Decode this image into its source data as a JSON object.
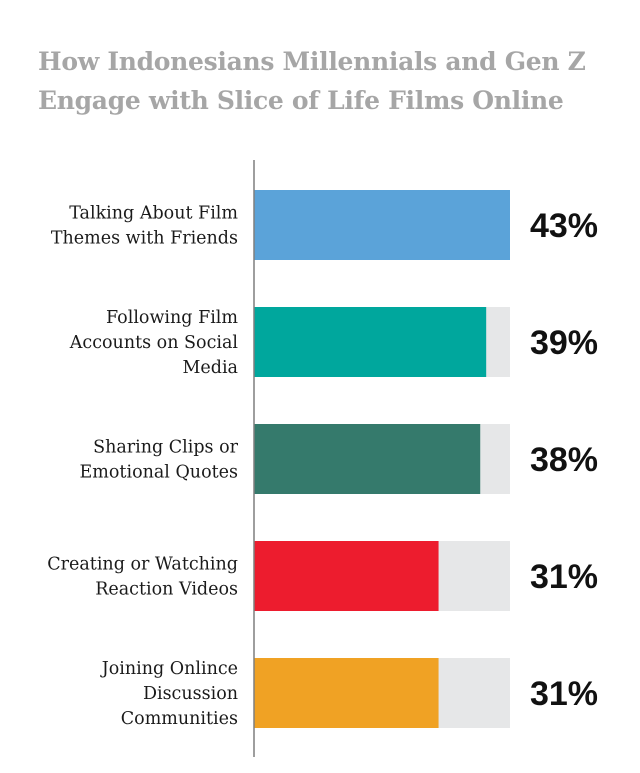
{
  "chart_data": {
    "type": "bar",
    "orientation": "horizontal",
    "title_lines": [
      "How Indonesians Millennials and Gen Z",
      "Engage with Slice of Life Films Online"
    ],
    "categories": [
      [
        "Talking About Film",
        "Themes with Friends"
      ],
      [
        "Following Film",
        "Accounts on Social",
        "Media"
      ],
      [
        "Sharing Clips or",
        "Emotional Quotes"
      ],
      [
        "Creating or Watching",
        "Reaction Videos"
      ],
      [
        "Joining Onlince",
        "Discussion",
        "Communities"
      ]
    ],
    "values": [
      43,
      39,
      38,
      31,
      31
    ],
    "value_labels": [
      "43%",
      "39%",
      "38%",
      "31%",
      "31%"
    ],
    "xlim": [
      0,
      43
    ],
    "bar_colors": [
      "#5ba3d9",
      "#00a79d",
      "#357a6c",
      "#ed1c2e",
      "#f0a224"
    ],
    "track_color": "#e6e7e8",
    "axis_color": "#7f7f7f"
  }
}
